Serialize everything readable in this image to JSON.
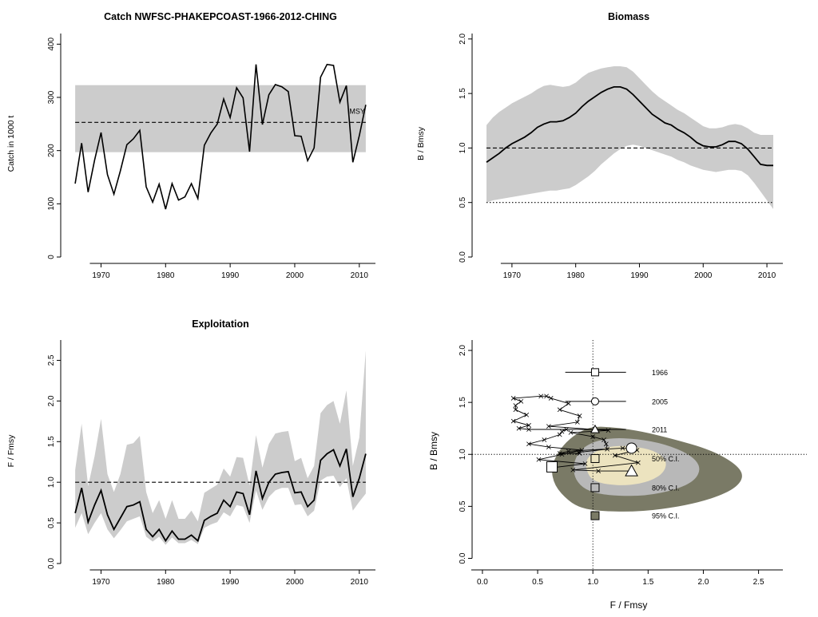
{
  "colors": {
    "band": "#cccccc",
    "line": "#000000",
    "kobe_95": "#7a7a66",
    "kobe_80": "#b8b8b8",
    "kobe_50": "#ece3bf",
    "marker_fill": "#ffffff"
  },
  "chart_data": [
    {
      "type": "line",
      "title": "Catch NWFSC-PHAKEPCOAST-1966-2012-CHING",
      "xlabel": "",
      "ylabel": "Catch in 1000 t",
      "xlim": [
        1964.5,
        2012.5
      ],
      "ylim": [
        0,
        420
      ],
      "xticks": [
        1970,
        1980,
        1990,
        2000,
        2010
      ],
      "yticks": [
        0,
        100,
        200,
        300,
        400
      ],
      "msy": 253,
      "msy_band": [
        197,
        323
      ],
      "msy_label": "MSY",
      "x": [
        1966,
        1967,
        1968,
        1969,
        1970,
        1971,
        1972,
        1973,
        1974,
        1975,
        1976,
        1977,
        1978,
        1979,
        1980,
        1981,
        1982,
        1983,
        1984,
        1985,
        1986,
        1987,
        1988,
        1989,
        1990,
        1991,
        1992,
        1993,
        1994,
        1995,
        1996,
        1997,
        1998,
        1999,
        2000,
        2001,
        2002,
        2003,
        2004,
        2005,
        2006,
        2007,
        2008,
        2009,
        2010,
        2011
      ],
      "values": [
        138,
        214,
        122,
        182,
        234,
        155,
        118,
        162,
        211,
        222,
        238,
        132,
        103,
        137,
        90,
        138,
        107,
        113,
        138,
        110,
        210,
        233,
        250,
        297,
        262,
        318,
        299,
        198,
        362,
        249,
        305,
        324,
        320,
        311,
        228,
        227,
        181,
        205,
        338,
        362,
        360,
        291,
        322,
        178,
        228,
        286
      ]
    },
    {
      "type": "area",
      "title": "Biomass",
      "xlabel": "",
      "ylabel": "B / Bmsy",
      "xlim": [
        1964.5,
        2012.5
      ],
      "ylim": [
        0,
        2.05
      ],
      "xticks": [
        1970,
        1980,
        1990,
        2000,
        2010
      ],
      "yticks": [
        0.0,
        0.5,
        1.0,
        1.5,
        2.0
      ],
      "ref_lines": [
        1.0,
        0.5
      ],
      "x": [
        1966,
        1967,
        1968,
        1969,
        1970,
        1971,
        1972,
        1973,
        1974,
        1975,
        1976,
        1977,
        1978,
        1979,
        1980,
        1981,
        1982,
        1983,
        1984,
        1985,
        1986,
        1987,
        1988,
        1989,
        1990,
        1991,
        1992,
        1993,
        1994,
        1995,
        1996,
        1997,
        1998,
        1999,
        2000,
        2001,
        2002,
        2003,
        2004,
        2005,
        2006,
        2007,
        2008,
        2009,
        2010,
        2011
      ],
      "values": [
        0.87,
        0.91,
        0.95,
        1.0,
        1.04,
        1.07,
        1.1,
        1.14,
        1.19,
        1.22,
        1.24,
        1.24,
        1.25,
        1.28,
        1.32,
        1.38,
        1.43,
        1.47,
        1.51,
        1.54,
        1.56,
        1.56,
        1.54,
        1.49,
        1.43,
        1.37,
        1.31,
        1.27,
        1.23,
        1.21,
        1.17,
        1.14,
        1.1,
        1.05,
        1.02,
        1.01,
        1.01,
        1.03,
        1.06,
        1.06,
        1.04,
        0.99,
        0.92,
        0.85,
        0.84,
        0.84
      ],
      "lower": [
        0.5,
        0.52,
        0.53,
        0.54,
        0.55,
        0.56,
        0.57,
        0.58,
        0.59,
        0.6,
        0.61,
        0.61,
        0.62,
        0.63,
        0.66,
        0.7,
        0.74,
        0.79,
        0.85,
        0.9,
        0.95,
        0.99,
        1.02,
        1.03,
        1.02,
        1.0,
        0.98,
        0.96,
        0.94,
        0.92,
        0.89,
        0.87,
        0.84,
        0.82,
        0.8,
        0.79,
        0.78,
        0.79,
        0.8,
        0.8,
        0.79,
        0.75,
        0.68,
        0.6,
        0.52,
        0.44
      ],
      "upper": [
        1.21,
        1.28,
        1.33,
        1.37,
        1.41,
        1.44,
        1.47,
        1.5,
        1.54,
        1.57,
        1.58,
        1.57,
        1.56,
        1.57,
        1.6,
        1.65,
        1.69,
        1.71,
        1.73,
        1.74,
        1.75,
        1.75,
        1.74,
        1.7,
        1.64,
        1.58,
        1.52,
        1.47,
        1.43,
        1.39,
        1.35,
        1.32,
        1.28,
        1.24,
        1.2,
        1.18,
        1.18,
        1.19,
        1.21,
        1.22,
        1.21,
        1.18,
        1.14,
        1.12,
        1.12,
        1.12
      ]
    },
    {
      "type": "area",
      "title": "Exploitation",
      "xlabel": "",
      "ylabel": "F / Fmsy",
      "xlim": [
        1964.5,
        2012.5
      ],
      "ylim": [
        0,
        2.75
      ],
      "xticks": [
        1970,
        1980,
        1990,
        2000,
        2010
      ],
      "yticks": [
        0.0,
        0.5,
        1.0,
        1.5,
        2.0,
        2.5
      ],
      "ref_lines": [
        1.0
      ],
      "x": [
        1966,
        1967,
        1968,
        1969,
        1970,
        1971,
        1972,
        1973,
        1974,
        1975,
        1976,
        1977,
        1978,
        1979,
        1980,
        1981,
        1982,
        1983,
        1984,
        1985,
        1986,
        1987,
        1988,
        1989,
        1990,
        1991,
        1992,
        1993,
        1994,
        1995,
        1996,
        1997,
        1998,
        1999,
        2000,
        2001,
        2002,
        2003,
        2004,
        2005,
        2006,
        2007,
        2008,
        2009,
        2010,
        2011
      ],
      "values": [
        0.62,
        0.93,
        0.51,
        0.72,
        0.9,
        0.6,
        0.42,
        0.56,
        0.7,
        0.72,
        0.76,
        0.42,
        0.33,
        0.42,
        0.28,
        0.4,
        0.3,
        0.3,
        0.35,
        0.28,
        0.53,
        0.58,
        0.62,
        0.78,
        0.7,
        0.88,
        0.86,
        0.6,
        1.14,
        0.8,
        1.0,
        1.1,
        1.12,
        1.13,
        0.87,
        0.88,
        0.7,
        0.78,
        1.27,
        1.35,
        1.4,
        1.2,
        1.41,
        0.82,
        1.05,
        1.35
      ],
      "lower": [
        0.44,
        0.62,
        0.36,
        0.5,
        0.62,
        0.42,
        0.31,
        0.41,
        0.52,
        0.55,
        0.58,
        0.33,
        0.27,
        0.33,
        0.23,
        0.32,
        0.25,
        0.25,
        0.29,
        0.24,
        0.44,
        0.48,
        0.51,
        0.63,
        0.58,
        0.72,
        0.7,
        0.5,
        0.9,
        0.66,
        0.82,
        0.9,
        0.93,
        0.93,
        0.72,
        0.73,
        0.58,
        0.65,
        1.02,
        1.07,
        1.08,
        0.94,
        1.05,
        0.65,
        0.76,
        0.86
      ],
      "upper": [
        1.15,
        1.72,
        0.95,
        1.32,
        1.78,
        1.1,
        0.88,
        1.1,
        1.46,
        1.48,
        1.57,
        0.88,
        0.62,
        0.78,
        0.55,
        0.78,
        0.55,
        0.55,
        0.65,
        0.52,
        0.87,
        0.92,
        0.97,
        1.17,
        1.07,
        1.31,
        1.3,
        0.96,
        1.58,
        1.18,
        1.47,
        1.6,
        1.62,
        1.63,
        1.26,
        1.3,
        1.05,
        1.2,
        1.85,
        1.95,
        2.0,
        1.72,
        2.13,
        1.2,
        1.55,
        2.62
      ]
    },
    {
      "type": "scatter",
      "title": "",
      "xlabel": "F / Fmsy",
      "ylabel": "B / Bmsy",
      "xlim": [
        -0.05,
        2.72
      ],
      "ylim": [
        -0.05,
        2.1
      ],
      "xticks": [
        0.0,
        0.5,
        1.0,
        1.5,
        2.0,
        2.5
      ],
      "yticks": [
        0.0,
        0.5,
        1.0,
        1.5,
        2.0
      ],
      "ref_lines": {
        "x": 1.0,
        "y": 1.0
      },
      "contours": [
        {
          "label": "95% C.I.",
          "points": [
            [
              0.78,
              0.55
            ],
            [
              0.65,
              0.7
            ],
            [
              0.62,
              0.88
            ],
            [
              0.7,
              1.05
            ],
            [
              0.82,
              1.18
            ],
            [
              0.98,
              1.27
            ],
            [
              1.2,
              1.26
            ],
            [
              1.45,
              1.22
            ],
            [
              1.72,
              1.15
            ],
            [
              2.05,
              1.05
            ],
            [
              2.28,
              0.92
            ],
            [
              2.37,
              0.8
            ],
            [
              2.3,
              0.68
            ],
            [
              2.1,
              0.58
            ],
            [
              1.8,
              0.5
            ],
            [
              1.45,
              0.45
            ],
            [
              1.1,
              0.45
            ],
            [
              0.9,
              0.48
            ]
          ]
        },
        {
          "label": "80% C.I.",
          "points": [
            [
              0.88,
              0.7
            ],
            [
              0.82,
              0.82
            ],
            [
              0.84,
              0.98
            ],
            [
              0.95,
              1.1
            ],
            [
              1.15,
              1.16
            ],
            [
              1.4,
              1.15
            ],
            [
              1.65,
              1.1
            ],
            [
              1.88,
              1.0
            ],
            [
              1.98,
              0.88
            ],
            [
              1.93,
              0.75
            ],
            [
              1.75,
              0.66
            ],
            [
              1.48,
              0.6
            ],
            [
              1.2,
              0.6
            ],
            [
              1.0,
              0.63
            ]
          ]
        },
        {
          "label": "50% C.I.",
          "points": [
            [
              0.95,
              0.82
            ],
            [
              0.93,
              0.93
            ],
            [
              1.0,
              1.02
            ],
            [
              1.15,
              1.08
            ],
            [
              1.35,
              1.08
            ],
            [
              1.55,
              1.04
            ],
            [
              1.67,
              0.95
            ],
            [
              1.65,
              0.83
            ],
            [
              1.52,
              0.74
            ],
            [
              1.32,
              0.7
            ],
            [
              1.12,
              0.71
            ],
            [
              1.0,
              0.75
            ]
          ]
        }
      ],
      "trajectory": {
        "F": [
          0.62,
          0.93,
          0.51,
          0.72,
          0.9,
          0.6,
          0.42,
          0.56,
          0.7,
          0.72,
          0.76,
          0.42,
          0.33,
          0.42,
          0.28,
          0.4,
          0.3,
          0.3,
          0.35,
          0.28,
          0.53,
          0.58,
          0.62,
          0.78,
          0.7,
          0.88,
          0.86,
          0.6,
          1.14,
          0.8,
          1.0,
          1.1,
          1.12,
          1.13,
          0.87,
          0.88,
          0.7,
          0.78,
          1.27,
          1.35,
          1.4,
          1.2,
          1.41,
          0.82,
          1.05,
          1.35
        ],
        "B": [
          0.87,
          0.91,
          0.95,
          1.0,
          1.04,
          1.07,
          1.1,
          1.14,
          1.19,
          1.22,
          1.24,
          1.24,
          1.25,
          1.28,
          1.32,
          1.38,
          1.43,
          1.47,
          1.51,
          1.54,
          1.56,
          1.56,
          1.54,
          1.49,
          1.43,
          1.37,
          1.31,
          1.27,
          1.23,
          1.21,
          1.17,
          1.14,
          1.1,
          1.05,
          1.02,
          1.01,
          1.01,
          1.03,
          1.06,
          1.06,
          1.04,
          0.99,
          0.92,
          0.85,
          0.84,
          0.84
        ]
      },
      "year_markers": [
        {
          "label": "1966",
          "shape": "square",
          "F": 1.02,
          "B": 1.79,
          "F_ci": [
            0.75,
            1.3
          ]
        },
        {
          "label": "2005",
          "shape": "circle",
          "F": 1.02,
          "B": 1.51,
          "F_ci": [
            0.75,
            1.3
          ]
        },
        {
          "label": "2011",
          "shape": "triangle",
          "F": 1.02,
          "B": 1.24,
          "F_ci": [
            0.5,
            1.3
          ]
        }
      ],
      "endpoints": [
        {
          "shape": "square",
          "F": 0.63,
          "B": 0.88
        },
        {
          "shape": "circle",
          "F": 1.35,
          "B": 1.06
        },
        {
          "shape": "triangle",
          "F": 1.35,
          "B": 0.84
        }
      ],
      "legend": [
        {
          "label": "50% C.I.",
          "F": 1.02,
          "B": 0.96,
          "fill": "#ece3bf"
        },
        {
          "label": "80% C.I.",
          "F": 1.02,
          "B": 0.68,
          "fill": "#b8b8b8"
        },
        {
          "label": "95% C.I.",
          "F": 1.02,
          "B": 0.41,
          "fill": "#7a7a66"
        }
      ]
    }
  ]
}
